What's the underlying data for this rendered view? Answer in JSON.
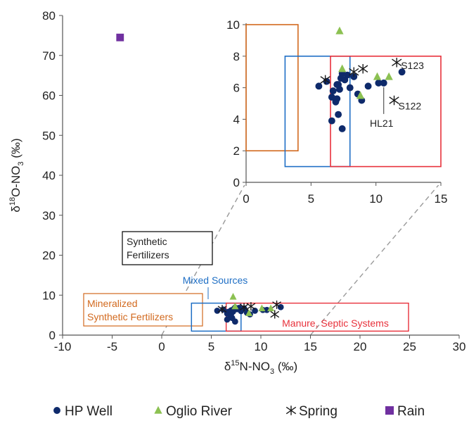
{
  "chart_data": {
    "type": "scatter",
    "xlabel": {
      "main": "δ",
      "sup": "15",
      "rest": "N-NO",
      "sub": "3",
      "unit": " (‰)"
    },
    "ylabel": {
      "main": "δ",
      "sup": "18",
      "rest": "O-NO",
      "sub": "3",
      "unit": " (‰)"
    },
    "xlim": [
      -10,
      30
    ],
    "ylim": [
      0,
      80
    ],
    "xticks": [
      -10,
      -5,
      0,
      5,
      10,
      15,
      20,
      25,
      30
    ],
    "yticks": [
      0,
      10,
      20,
      30,
      40,
      50,
      60,
      70,
      80
    ],
    "grid": false,
    "legend_position": "bottom",
    "colors": {
      "hp_well": "#0e2a6b",
      "oglio_river": "#8cc152",
      "spring": "#1a1a1a",
      "rain": "#7030a0",
      "mineralized_box": "#d2691e",
      "mixed_box": "#1f6fc5",
      "manure_box": "#e8313b",
      "synthetic_box": "#000000",
      "connector": "#9a9a9a"
    },
    "series": [
      {
        "name": "HP Well",
        "marker": "circle",
        "points": [
          [
            5.6,
            6.1
          ],
          [
            6.2,
            6.4
          ],
          [
            6.6,
            5.4
          ],
          [
            6.7,
            5.8
          ],
          [
            6.9,
            5.1
          ],
          [
            7.0,
            5.3
          ],
          [
            7.1,
            6.2
          ],
          [
            7.1,
            4.3
          ],
          [
            7.2,
            5.9
          ],
          [
            7.3,
            6.6
          ],
          [
            7.4,
            6.9
          ],
          [
            7.4,
            3.4
          ],
          [
            7.6,
            6.5
          ],
          [
            7.8,
            6.8
          ],
          [
            8.0,
            6.0
          ],
          [
            8.3,
            6.7
          ],
          [
            8.6,
            5.6
          ],
          [
            8.9,
            5.2
          ],
          [
            9.4,
            6.1
          ],
          [
            10.2,
            6.3
          ],
          [
            10.6,
            6.3
          ],
          [
            6.6,
            3.9
          ],
          [
            7.0,
            6.2
          ],
          [
            12.0,
            7.0
          ]
        ]
      },
      {
        "name": "Oglio River",
        "marker": "triangle",
        "points": [
          [
            7.2,
            9.6
          ],
          [
            7.4,
            7.2
          ],
          [
            8.8,
            5.5
          ],
          [
            10.1,
            6.7
          ],
          [
            11.0,
            6.7
          ]
        ]
      },
      {
        "name": "Spring",
        "marker": "asterisk",
        "points": [
          [
            6.1,
            6.5
          ],
          [
            8.3,
            7.0
          ],
          [
            9.0,
            7.2
          ],
          [
            11.4,
            5.2
          ],
          [
            11.6,
            7.6
          ]
        ]
      },
      {
        "name": "Rain",
        "marker": "square",
        "points": [
          [
            -4.2,
            74.5
          ]
        ]
      }
    ],
    "regions": [
      {
        "key": "mineralized_box",
        "label": "Mineralized",
        "x": [
          0,
          4
        ],
        "y": [
          2,
          10
        ]
      },
      {
        "key": "mixed_box",
        "label": "Mixed Sources",
        "x": [
          3,
          8
        ],
        "y": [
          1,
          8
        ]
      },
      {
        "key": "manure_box",
        "label": "Manure, Septic Systems",
        "x": [
          6.5,
          15
        ],
        "y": [
          1,
          8
        ]
      }
    ],
    "inset": {
      "xlim": [
        0,
        15
      ],
      "ylim": [
        0,
        10
      ],
      "xticks": [
        0,
        5,
        10,
        15
      ],
      "yticks": [
        0,
        2,
        4,
        6,
        8,
        10
      ],
      "annotations": [
        {
          "text": "S123",
          "x": 11.6,
          "y": 7.6,
          "dx": 6,
          "dy": 9
        },
        {
          "text": "S122",
          "x": 11.4,
          "y": 5.2,
          "dx": 6,
          "dy": 13
        },
        {
          "text": "HL21",
          "x": 10.6,
          "y": 6.3,
          "dx": -3,
          "dy": 62
        }
      ]
    },
    "main_labels": {
      "synthetic": [
        "Synthetic",
        "Fertilizers"
      ],
      "mixed": "Mixed Sources",
      "mineralized": [
        "Mineralized",
        "Synthetic Fertilizers"
      ],
      "manure": "Manure, Septic Systems"
    }
  }
}
